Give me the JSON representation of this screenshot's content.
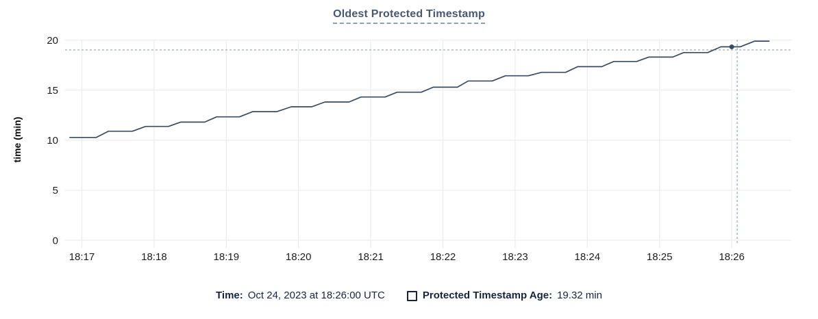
{
  "title": "Oldest Protected Timestamp",
  "colors": {
    "title": "#475872",
    "title_underline": "#8ba0b3",
    "axis_text": "#1d1d1d",
    "grid": "#ededed",
    "series": "#394a63",
    "crosshair": "#a2b5c1",
    "legend_text": "#15233f"
  },
  "legend": {
    "time_label": "Time:",
    "time_value": "Oct 24, 2023 at 18:26:00 UTC",
    "series_label": "Protected Timestamp Age:",
    "series_value": "19.32 min"
  },
  "chart_data": {
    "type": "line",
    "title": "Oldest Protected Timestamp",
    "xlabel": "",
    "ylabel": "time (min)",
    "ylim": [
      0,
      20
    ],
    "yticks": [
      0,
      5,
      10,
      15,
      20
    ],
    "xticks": [
      "18:17",
      "18:18",
      "18:19",
      "18:20",
      "18:21",
      "18:22",
      "18:23",
      "18:24",
      "18:25",
      "18:26"
    ],
    "grid": true,
    "legend_position": "bottom",
    "series": [
      {
        "name": "Protected Timestamp Age",
        "unit": "min",
        "points": [
          [
            "18:16:50",
            10.27
          ],
          [
            "18:17:12",
            10.27
          ],
          [
            "18:17:22",
            10.89
          ],
          [
            "18:17:42",
            10.89
          ],
          [
            "18:17:53",
            11.37
          ],
          [
            "18:18:12",
            11.37
          ],
          [
            "18:18:22",
            11.8
          ],
          [
            "18:18:42",
            11.8
          ],
          [
            "18:18:52",
            12.33
          ],
          [
            "18:19:11",
            12.33
          ],
          [
            "18:19:22",
            12.85
          ],
          [
            "18:19:42",
            12.85
          ],
          [
            "18:19:54",
            13.33
          ],
          [
            "18:20:11",
            13.33
          ],
          [
            "18:20:22",
            13.81
          ],
          [
            "18:20:42",
            13.81
          ],
          [
            "18:20:52",
            14.31
          ],
          [
            "18:21:12",
            14.31
          ],
          [
            "18:21:22",
            14.79
          ],
          [
            "18:21:42",
            14.79
          ],
          [
            "18:21:52",
            15.29
          ],
          [
            "18:22:12",
            15.29
          ],
          [
            "18:22:21",
            15.91
          ],
          [
            "18:22:41",
            15.91
          ],
          [
            "18:22:52",
            16.43
          ],
          [
            "18:23:11",
            16.43
          ],
          [
            "18:23:22",
            16.77
          ],
          [
            "18:23:42",
            16.77
          ],
          [
            "18:23:52",
            17.34
          ],
          [
            "18:24:12",
            17.34
          ],
          [
            "18:24:22",
            17.86
          ],
          [
            "18:24:41",
            17.86
          ],
          [
            "18:24:51",
            18.3
          ],
          [
            "18:25:11",
            18.3
          ],
          [
            "18:25:20",
            18.75
          ],
          [
            "18:25:40",
            18.75
          ],
          [
            "18:25:51",
            19.32
          ],
          [
            "18:26:07",
            19.32
          ],
          [
            "18:26:19",
            19.89
          ],
          [
            "18:26:31",
            19.89
          ]
        ]
      }
    ],
    "hover": {
      "time": "18:26:00",
      "value": 19.32,
      "date_label": "Oct 24, 2023 at 18:26:00 UTC"
    }
  }
}
